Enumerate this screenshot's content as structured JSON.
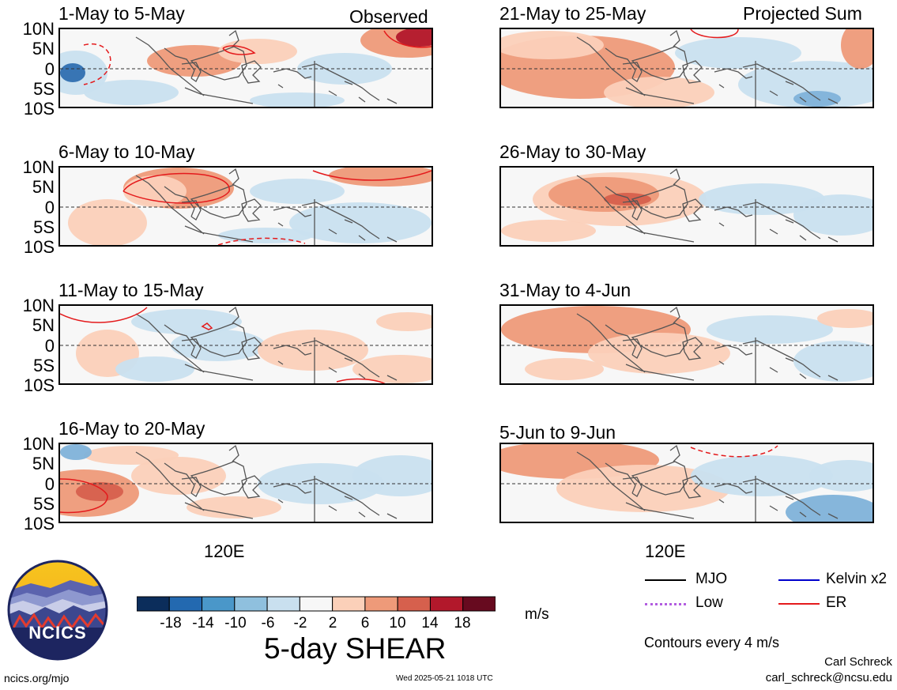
{
  "headers": {
    "left": "Observed",
    "right": "Projected Sum"
  },
  "panels": [
    {
      "title": "1-May to 5-May"
    },
    {
      "title": "6-May to 10-May"
    },
    {
      "title": "11-May to 15-May"
    },
    {
      "title": "16-May to 20-May"
    },
    {
      "title": "21-May to 25-May"
    },
    {
      "title": "26-May to 30-May"
    },
    {
      "title": "31-May to 4-Jun"
    },
    {
      "title": "5-Jun to 9-Jun"
    }
  ],
  "axes": {
    "lat_ticks": [
      "10N",
      "5N",
      "0",
      "5S",
      "10S"
    ],
    "lon_tick": "120E"
  },
  "colorbar": {
    "labels": [
      "-18",
      "-14",
      "-10",
      "-6",
      "-2",
      "2",
      "6",
      "10",
      "14",
      "18"
    ],
    "colors": [
      "#0b2d5b",
      "#2369b0",
      "#4a97c9",
      "#8fc0de",
      "#c9e0ef",
      "#f7f7f7",
      "#fbd0b9",
      "#ee9a79",
      "#d6604d",
      "#b2182b",
      "#670a1f"
    ],
    "unit": "m/s",
    "title": "5-day SHEAR"
  },
  "legend": {
    "items": [
      {
        "label": "MJO",
        "color": "#000000",
        "style": "solid"
      },
      {
        "label": "Kelvin x2",
        "color": "#0000cc",
        "style": "solid"
      },
      {
        "label": "Low",
        "color": "#b25de0",
        "style": "dotted"
      },
      {
        "label": "ER",
        "color": "#e41a1c",
        "style": "solid"
      }
    ],
    "note": "Contours every 4 m/s"
  },
  "footer": {
    "logo_text": "NCICS",
    "site": "ncics.org/mjo",
    "timestamp": "Wed 2025-05-21 1018 UTC",
    "author": "Carl Schreck",
    "email": "carl_schreck@ncsu.edu"
  }
}
